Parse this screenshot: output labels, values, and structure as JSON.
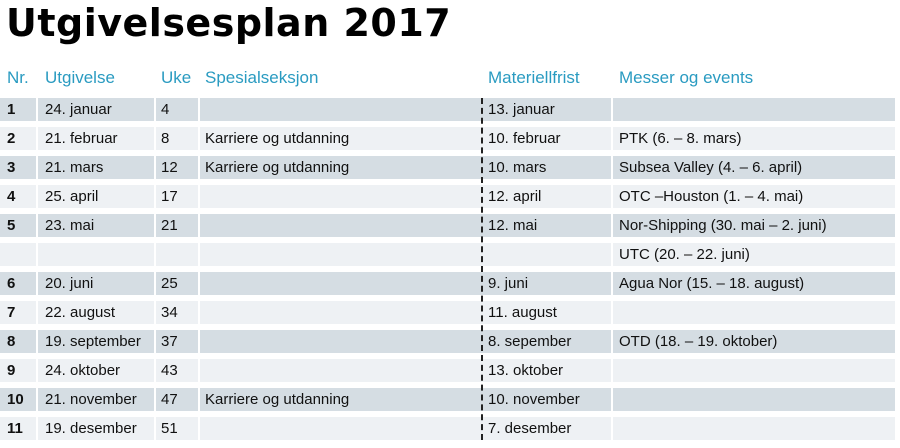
{
  "title": "Utgivelsesplan 2017",
  "headers": [
    "Nr.",
    "Utgivelse",
    "Uke",
    "Spesialseksjon",
    "Materiellfrist",
    "Messer og events"
  ],
  "rows": [
    {
      "nr": "1",
      "utgivelse": "24. januar",
      "uke": "4",
      "spesial": "",
      "frist": "13. januar",
      "messer": ""
    },
    {
      "nr": "2",
      "utgivelse": "21. februar",
      "uke": "8",
      "spesial": "Karriere og utdanning",
      "frist": "10. februar",
      "messer": "PTK (6. – 8. mars)"
    },
    {
      "nr": "3",
      "utgivelse": "21. mars",
      "uke": "12",
      "spesial": "Karriere og utdanning",
      "frist": "10. mars",
      "messer": "Subsea Valley (4. – 6. april)"
    },
    {
      "nr": "4",
      "utgivelse": "25. april",
      "uke": "17",
      "spesial": "",
      "frist": "12. april",
      "messer": "OTC –Houston (1. – 4. mai)"
    },
    {
      "nr": "5",
      "utgivelse": "23. mai",
      "uke": "21",
      "spesial": "",
      "frist": "12. mai",
      "messer": "Nor-Shipping (30. mai – 2. juni)"
    },
    {
      "nr": "",
      "utgivelse": "",
      "uke": "",
      "spesial": "",
      "frist": "",
      "messer": "UTC (20. – 22. juni)"
    },
    {
      "nr": "6",
      "utgivelse": "20. juni",
      "uke": "25",
      "spesial": "",
      "frist": "9. juni",
      "messer": "Agua Nor  (15. – 18. august)"
    },
    {
      "nr": "7",
      "utgivelse": "22. august",
      "uke": "34",
      "spesial": "",
      "frist": "11. august",
      "messer": ""
    },
    {
      "nr": "8",
      "utgivelse": "19. september",
      "uke": "37",
      "spesial": "",
      "frist": "8. sepember",
      "messer": "OTD (18. – 19. oktober)"
    },
    {
      "nr": "9",
      "utgivelse": "24. oktober",
      "uke": "43",
      "spesial": "",
      "frist": "13. oktober",
      "messer": ""
    },
    {
      "nr": "10",
      "utgivelse": "21. november",
      "uke": "47",
      "spesial": "Karriere og utdanning",
      "frist": "10. november",
      "messer": ""
    },
    {
      "nr": "11",
      "utgivelse": "19. desember",
      "uke": "51",
      "spesial": "",
      "frist": "7. desember",
      "messer": ""
    }
  ],
  "colors": {
    "header": "#2a9bc1",
    "row_dark": "#d5dde3",
    "row_light": "#eef1f4"
  }
}
